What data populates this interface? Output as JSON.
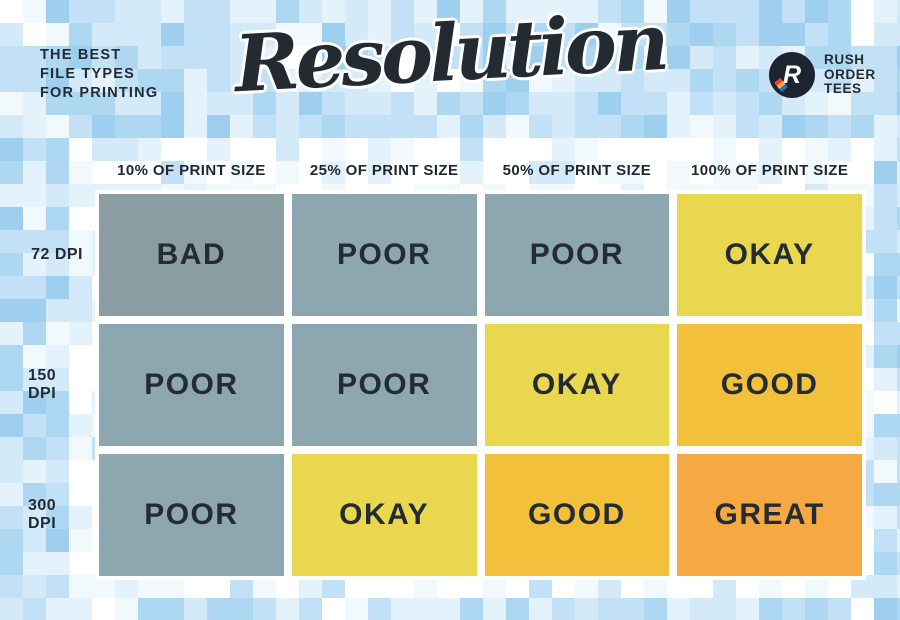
{
  "eyebrow": {
    "line1": "THE BEST",
    "line2": "FILE TYPES",
    "line3": "FOR PRINTING"
  },
  "title": "Resolution",
  "logo": {
    "initial": "R",
    "line1": "RUSH",
    "line2": "ORDER",
    "line3": "TEES"
  },
  "table": {
    "col_headers": [
      "10% OF PRINT SIZE",
      "25% OF PRINT SIZE",
      "50% OF PRINT SIZE",
      "100% OF PRINT SIZE"
    ],
    "rows": [
      {
        "label": "72 DPI",
        "cells": [
          "BAD",
          "POOR",
          "POOR",
          "OKAY"
        ]
      },
      {
        "label": "150 DPI",
        "cells": [
          "POOR",
          "POOR",
          "OKAY",
          "GOOD"
        ]
      },
      {
        "label": "300 DPI",
        "cells": [
          "POOR",
          "OKAY",
          "GOOD",
          "GREAT"
        ]
      }
    ]
  },
  "chart_data": {
    "type": "heatmap",
    "title": "Resolution",
    "subtitle": "The best file types for printing",
    "columns": [
      "10% OF PRINT SIZE",
      "25% OF PRINT SIZE",
      "50% OF PRINT SIZE",
      "100% OF PRINT SIZE"
    ],
    "rows": [
      "72 DPI",
      "150 DPI",
      "300 DPI"
    ],
    "values": [
      [
        "BAD",
        "POOR",
        "POOR",
        "OKAY"
      ],
      [
        "POOR",
        "POOR",
        "OKAY",
        "GOOD"
      ],
      [
        "POOR",
        "OKAY",
        "GOOD",
        "GREAT"
      ]
    ],
    "rating_scale": [
      "BAD",
      "POOR",
      "OKAY",
      "GOOD",
      "GREAT"
    ],
    "rating_colors": {
      "BAD": "#8a9da3",
      "POOR": "#8ca7b0",
      "OKAY": "#e9d84f",
      "GOOD": "#f2c03a",
      "GREAT": "#f6a843"
    }
  },
  "palette": {
    "ink": "#232a32",
    "logo_bg": "#1b2430",
    "cell_gap_white": "#ffffff",
    "mosaic": [
      "#ffffff",
      "#f2f9fd",
      "#e4f2fb",
      "#d4eaf9",
      "#c2e1f6",
      "#aed7f2",
      "#9fcfee"
    ]
  }
}
